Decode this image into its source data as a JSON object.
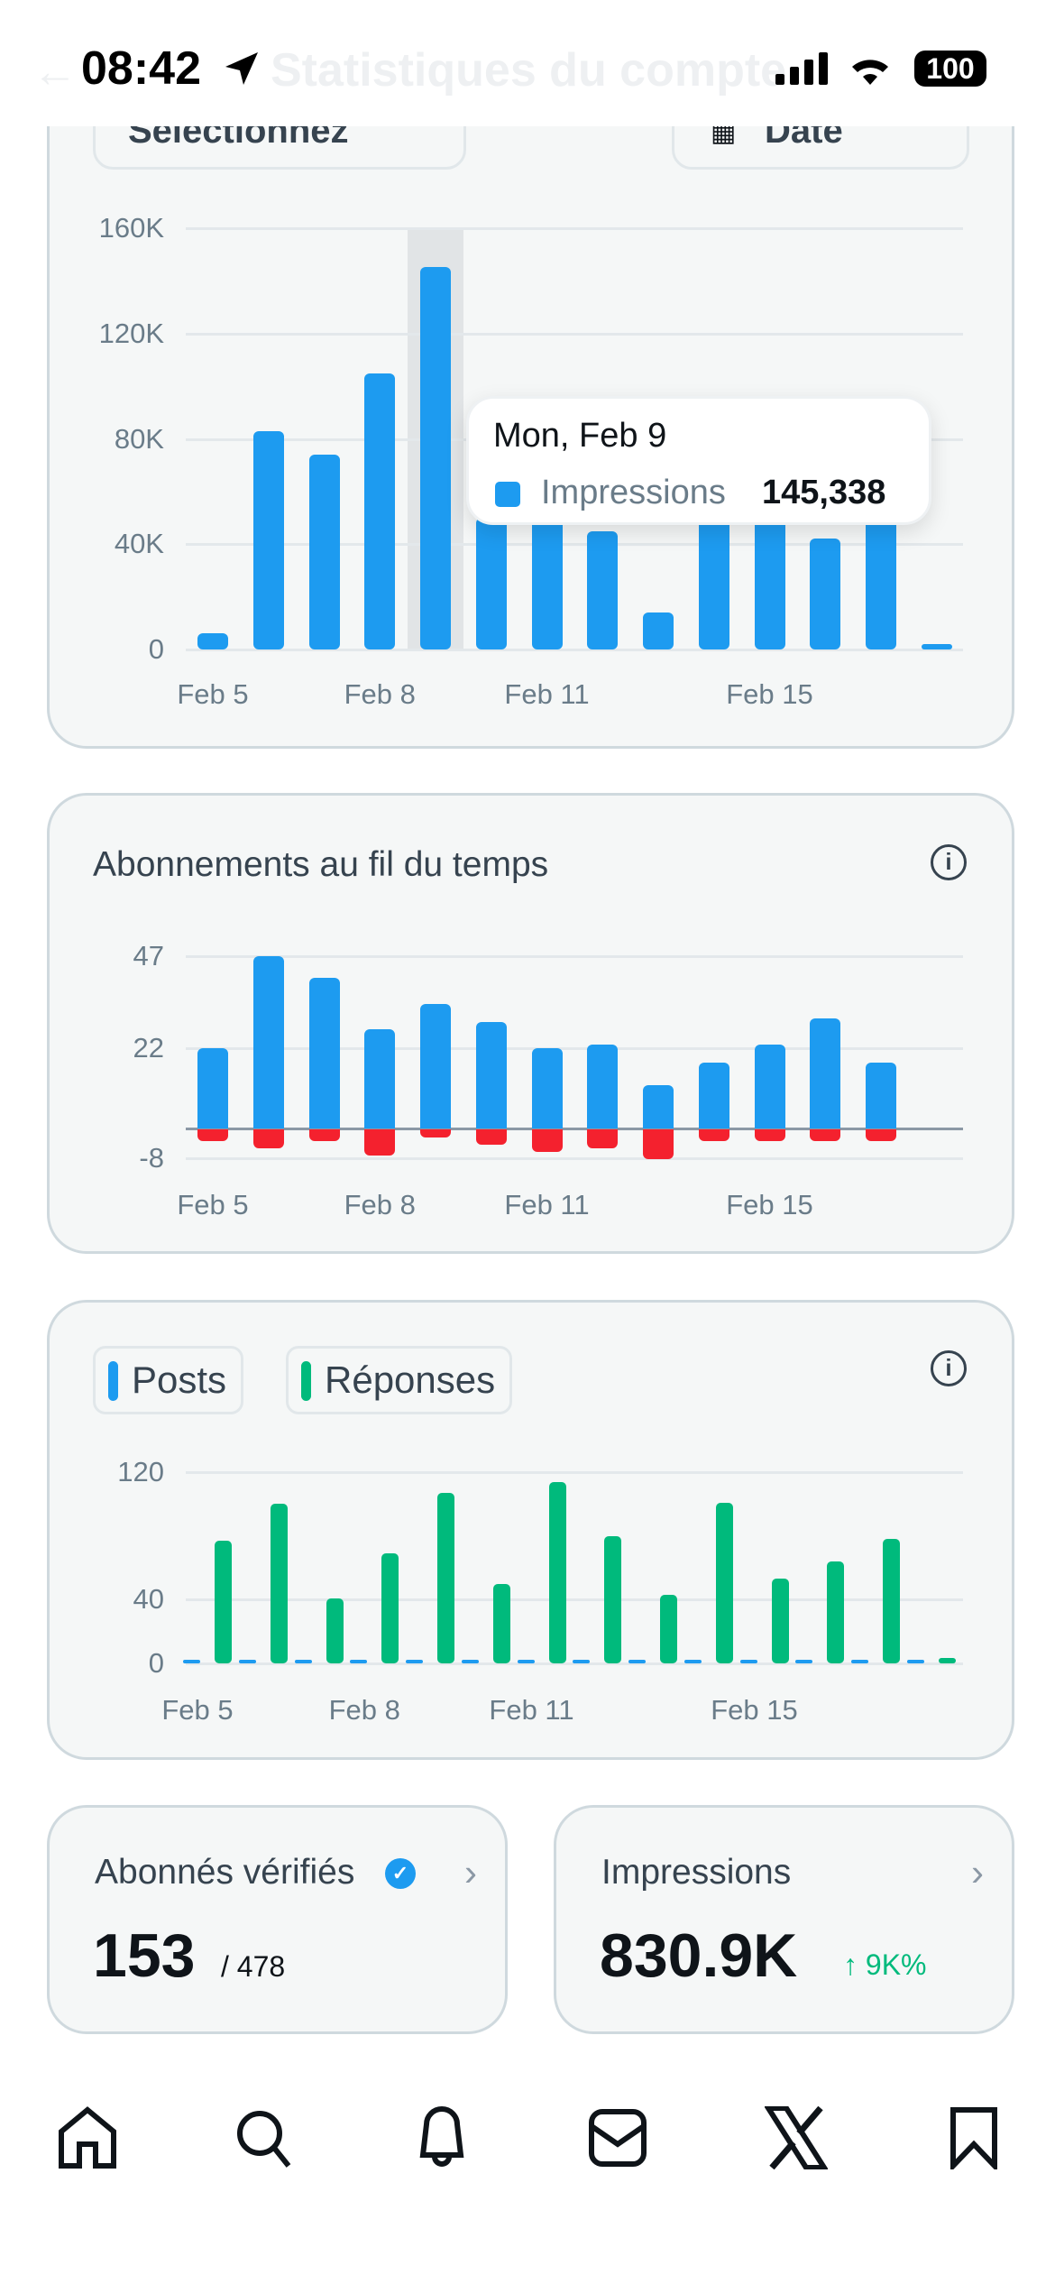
{
  "status_bar": {
    "time": "08:42",
    "battery": "100"
  },
  "header": {
    "title": "Statistiques du compte"
  },
  "filters": {
    "select_label": "Sélectionnez",
    "date_label": "Date"
  },
  "colors": {
    "blue": "#1d9bf0",
    "red": "#f4212e",
    "green": "#00ba7c",
    "card_bg": "#f5f7f7"
  },
  "tooltip": {
    "date": "Mon, Feb 9",
    "series": "Impressions",
    "value": "145,338"
  },
  "chart_data": [
    {
      "type": "bar",
      "title": "",
      "series": [
        {
          "name": "Impressions",
          "values": [
            6000,
            83000,
            74000,
            105000,
            145338,
            50000,
            50000,
            45000,
            14000,
            50000,
            50000,
            42000,
            50000,
            1000
          ]
        }
      ],
      "categories": [
        "Feb 5",
        "Feb 6",
        "Feb 7",
        "Feb 8",
        "Feb 9",
        "Feb 10",
        "Feb 11",
        "Feb 12",
        "Feb 13",
        "Feb 14",
        "Feb 15",
        "Feb 16",
        "Feb 17",
        "Feb 18"
      ],
      "x_tick_labels": [
        "Feb 5",
        "Feb 8",
        "Feb 11",
        "Feb 15"
      ],
      "y_tick_labels": [
        "0",
        "40K",
        "80K",
        "120K",
        "160K"
      ],
      "ylim": [
        0,
        160000
      ],
      "grid": true,
      "highlighted": "Feb 9"
    },
    {
      "type": "bar",
      "title": "Abonnements au fil du temps",
      "series": [
        {
          "values": [
            22,
            47,
            41,
            27,
            34,
            29,
            22,
            23,
            12,
            18,
            23,
            30,
            18
          ]
        },
        {
          "values": [
            -3,
            -5,
            -3,
            -7,
            -2,
            -4,
            -6,
            -5,
            -8,
            -3,
            -3,
            -3,
            -3
          ]
        }
      ],
      "categories": [
        "Feb 5",
        "Feb 6",
        "Feb 7",
        "Feb 8",
        "Feb 9",
        "Feb 10",
        "Feb 11",
        "Feb 12",
        "Feb 13",
        "Feb 14",
        "Feb 15",
        "Feb 16",
        "Feb 17"
      ],
      "x_tick_labels": [
        "Feb 5",
        "Feb 8",
        "Feb 11",
        "Feb 15"
      ],
      "y_tick_labels": [
        "-8",
        "22",
        "47"
      ],
      "ylim": [
        -8,
        47
      ],
      "grid": true
    },
    {
      "type": "bar",
      "title": "",
      "legend": [
        "Posts",
        "Réponses"
      ],
      "series": [
        {
          "name": "Posts",
          "values": [
            0,
            1,
            0,
            0,
            1,
            0,
            1,
            2,
            1,
            0,
            0,
            0,
            0,
            0
          ]
        },
        {
          "name": "Réponses",
          "values": [
            77,
            100,
            41,
            69,
            107,
            50,
            114,
            80,
            43,
            101,
            53,
            64,
            78,
            2
          ]
        }
      ],
      "categories": [
        "Feb 5",
        "Feb 6",
        "Feb 7",
        "Feb 8",
        "Feb 9",
        "Feb 10",
        "Feb 11",
        "Feb 12",
        "Feb 13",
        "Feb 14",
        "Feb 15",
        "Feb 16",
        "Feb 17",
        "Feb 18"
      ],
      "x_tick_labels": [
        "Feb 5",
        "Feb 8",
        "Feb 11",
        "Feb 15"
      ],
      "y_tick_labels": [
        "0",
        "40",
        "120"
      ],
      "ylim": [
        0,
        120
      ],
      "grid": true
    }
  ],
  "stats": {
    "verified": {
      "label": "Abonnés vérifiés",
      "value": "153",
      "total": "/ 478"
    },
    "impressions": {
      "label": "Impressions",
      "value": "830.9K",
      "change": "↑ 9K%"
    }
  },
  "nav": [
    "home-icon",
    "search-icon",
    "notifications-icon",
    "messages-icon",
    "x-logo-icon",
    "bookmarks-icon"
  ]
}
